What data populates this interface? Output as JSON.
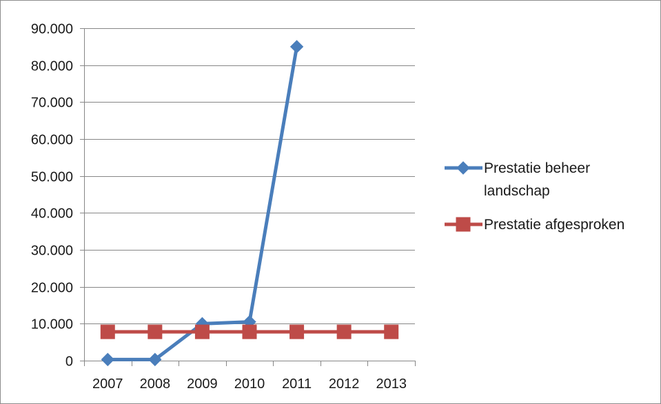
{
  "chart_data": {
    "type": "line",
    "title": "",
    "xlabel": "",
    "ylabel": "",
    "categories": [
      "2007",
      "2008",
      "2009",
      "2010",
      "2011",
      "2012",
      "2013"
    ],
    "ylim": [
      0,
      90000
    ],
    "yticks": [
      0,
      10000,
      20000,
      30000,
      40000,
      50000,
      60000,
      70000,
      80000,
      90000
    ],
    "ytick_labels": [
      "0",
      "10.000",
      "20.000",
      "30.000",
      "40.000",
      "50.000",
      "60.000",
      "70.000",
      "80.000",
      "90.000"
    ],
    "grid": "horizontal",
    "legend_position": "right",
    "series": [
      {
        "name": "Prestatie beheer landschap",
        "legend_lines": [
          "Prestatie beheer",
          "landschap"
        ],
        "color": "#4a7ebb",
        "marker": "diamond",
        "values": [
          300,
          300,
          10000,
          10500,
          85000,
          null,
          null
        ]
      },
      {
        "name": "Prestatie afgesproken",
        "legend_lines": [
          "Prestatie afgesproken"
        ],
        "color": "#be4b48",
        "marker": "square",
        "values": [
          7800,
          7800,
          7800,
          7800,
          7800,
          7800,
          7800
        ]
      }
    ]
  }
}
